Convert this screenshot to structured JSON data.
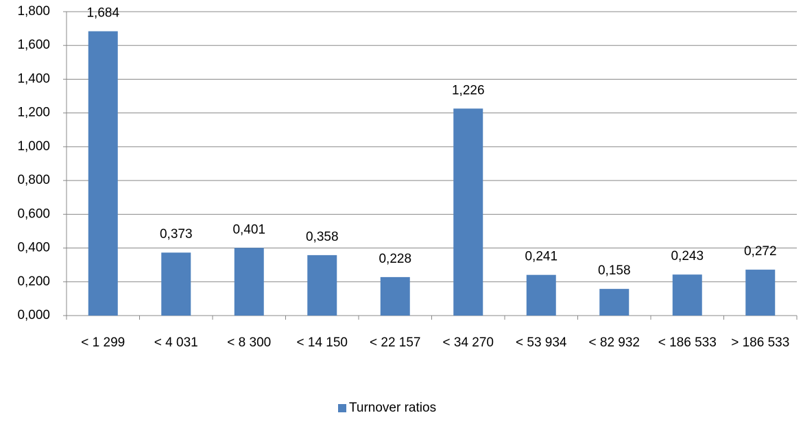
{
  "chart_data": {
    "type": "bar",
    "categories": [
      "< 1 299",
      "< 4 031",
      "< 8 300",
      "< 14 150",
      "< 22 157",
      "< 34 270",
      "< 53 934",
      "< 82 932",
      "< 186 533",
      "> 186 533"
    ],
    "series": [
      {
        "name": "Turnover ratios",
        "color": "#4f81bd",
        "values": [
          1.684,
          0.373,
          0.401,
          0.358,
          0.228,
          1.226,
          0.241,
          0.158,
          0.243,
          0.272
        ],
        "value_labels": [
          "1,684",
          "0,373",
          "0,401",
          "0,358",
          "0,228",
          "1,226",
          "0,241",
          "0,158",
          "0,243",
          "0,272"
        ]
      }
    ],
    "ylim": [
      0,
      1.8
    ],
    "yticks": [
      {
        "value": 0,
        "label": "0,000"
      },
      {
        "value": 0.2,
        "label": "0,200"
      },
      {
        "value": 0.4,
        "label": "0,400"
      },
      {
        "value": 0.6,
        "label": "0,600"
      },
      {
        "value": 0.8,
        "label": "0,800"
      },
      {
        "value": 1,
        "label": "1,000"
      },
      {
        "value": 1.2,
        "label": "1,200"
      },
      {
        "value": 1.4,
        "label": "1,400"
      },
      {
        "value": 1.6,
        "label": "1,600"
      },
      {
        "value": 1.8,
        "label": "1,800"
      }
    ],
    "grid": true,
    "legend": "bottom"
  }
}
